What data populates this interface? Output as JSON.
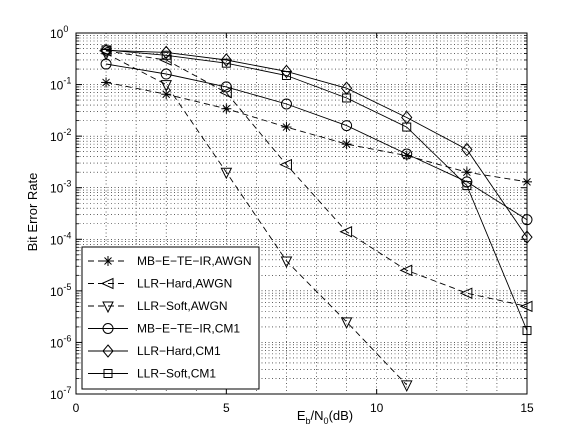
{
  "chart_data": {
    "type": "line",
    "title": "",
    "xlabel": "E_b/N_0(dB)",
    "xlabel_parts": {
      "main": "E",
      "sub1": "b",
      "mid": "/N",
      "sub2": "0",
      "tail": "(dB)"
    },
    "ylabel": "Bit Error Rate",
    "xlim": [
      0,
      15
    ],
    "ylim": [
      1e-07,
      1
    ],
    "yscale": "log",
    "grid": true,
    "legend_position": "bottom-left",
    "x_ticks": [
      {
        "value": 0,
        "label": "0"
      },
      {
        "value": 5,
        "label": "5"
      },
      {
        "value": 10,
        "label": "10"
      },
      {
        "value": 15,
        "label": "15"
      }
    ],
    "y_ticks": [
      {
        "value": 1,
        "base": "10",
        "exp": "0"
      },
      {
        "value": 0.1,
        "base": "10",
        "exp": "-1"
      },
      {
        "value": 0.01,
        "base": "10",
        "exp": "-2"
      },
      {
        "value": 0.001,
        "base": "10",
        "exp": "-3"
      },
      {
        "value": 0.0001,
        "base": "10",
        "exp": "-4"
      },
      {
        "value": 1e-05,
        "base": "10",
        "exp": "-5"
      },
      {
        "value": 1e-06,
        "base": "10",
        "exp": "-6"
      },
      {
        "value": 1e-07,
        "base": "10",
        "exp": "-7"
      }
    ],
    "series": [
      {
        "name": "MB−E−TE−IR,AWGN",
        "line": "dashed",
        "marker": "star",
        "x": [
          1,
          3,
          5,
          7,
          9,
          11,
          13,
          15
        ],
        "y": [
          0.11,
          0.065,
          0.034,
          0.015,
          0.007,
          0.0042,
          0.002,
          0.0013
        ]
      },
      {
        "name": "LLR−Hard,AWGN",
        "line": "dashed",
        "marker": "triangle-left",
        "x": [
          1,
          3,
          5,
          7,
          9,
          11,
          13,
          15
        ],
        "y": [
          0.45,
          0.3,
          0.07,
          0.0028,
          0.00014,
          2.5e-05,
          9e-06,
          5e-06
        ]
      },
      {
        "name": "LLR−Soft,AWGN",
        "line": "dashed",
        "marker": "triangle-down",
        "x": [
          1,
          3,
          5,
          7,
          9,
          11
        ],
        "y": [
          0.4,
          0.1,
          0.002,
          3.8e-05,
          2.5e-06,
          1.5e-07
        ]
      },
      {
        "name": "MB−E−TE−IR,CM1",
        "line": "solid",
        "marker": "circle",
        "x": [
          1,
          3,
          5,
          7,
          9,
          11,
          13,
          15
        ],
        "y": [
          0.25,
          0.16,
          0.09,
          0.042,
          0.016,
          0.0045,
          0.0013,
          0.00024
        ]
      },
      {
        "name": "LLR−Hard,CM1",
        "line": "solid",
        "marker": "diamond",
        "x": [
          1,
          3,
          5,
          7,
          9,
          11,
          13,
          15
        ],
        "y": [
          0.46,
          0.42,
          0.3,
          0.18,
          0.085,
          0.023,
          0.0055,
          0.00011
        ]
      },
      {
        "name": "LLR−Soft,CM1",
        "line": "solid",
        "marker": "square",
        "x": [
          1,
          3,
          5,
          7,
          9,
          11,
          13,
          15
        ],
        "y": [
          0.47,
          0.37,
          0.26,
          0.15,
          0.055,
          0.015,
          0.0011,
          1.7e-06
        ]
      }
    ]
  }
}
